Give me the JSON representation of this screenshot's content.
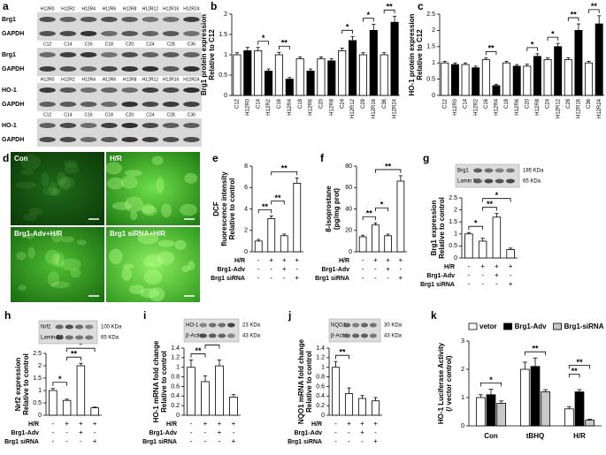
{
  "blots": {
    "panel": "a",
    "strips": [
      {
        "lanes": [
          "H12R0",
          "H12R2",
          "H12R4",
          "H12R6",
          "H12R8",
          "H12R12",
          "H12R16",
          "H12R24"
        ],
        "rows": [
          "Brg1",
          "GAPDH"
        ]
      },
      {
        "lanes": [
          "C12",
          "C14",
          "C16",
          "C18",
          "C20",
          "C24",
          "C28",
          "C36"
        ],
        "rows": [
          "Brg1",
          "GAPDH"
        ]
      },
      {
        "lanes": [
          "H12R0",
          "H12R2",
          "H12R4",
          "H12R6",
          "H12R8",
          "H12R12",
          "H12R16",
          "H12R24"
        ],
        "rows": [
          "HO-1",
          "GAPDH"
        ]
      },
      {
        "lanes": [
          "C12",
          "C14",
          "C16",
          "C18",
          "C20",
          "C24",
          "C28",
          "C36"
        ],
        "rows": [
          "HO-1",
          "GAPDH"
        ]
      }
    ]
  },
  "micrographs": {
    "panel": "d",
    "images": [
      {
        "label": "Con"
      },
      {
        "label": "H/R"
      },
      {
        "label": "Brg1-Adv+H/R"
      },
      {
        "label": "Brg1 siRNA+H/R"
      }
    ]
  },
  "chart_data": [
    {
      "panel": "b",
      "type": "bar",
      "ylabel": [
        "Brg1 protein expression",
        "Relative to C12"
      ],
      "ylim": [
        0,
        2
      ],
      "yticks": [
        0,
        0.5,
        1,
        1.5,
        2
      ],
      "categories": [
        "C12",
        "H12R0",
        "C14",
        "H12R2",
        "C16",
        "H12R4",
        "C18",
        "H12R6",
        "C20",
        "H12R8",
        "C24",
        "H12R12",
        "C28",
        "H12R16",
        "C36",
        "H12R24"
      ],
      "values": [
        1.0,
        1.1,
        1.1,
        0.6,
        1.0,
        0.4,
        0.9,
        0.6,
        0.9,
        0.85,
        1.1,
        1.35,
        1.0,
        1.6,
        1.0,
        1.8
      ],
      "errors": [
        0.05,
        0.08,
        0.08,
        0.05,
        0.06,
        0.04,
        0.05,
        0.05,
        0.05,
        0.05,
        0.06,
        0.1,
        0.05,
        0.15,
        0.05,
        0.15
      ],
      "bar_colors": [
        "#ffffff",
        "#000000"
      ],
      "significance": [
        {
          "between": [
            2,
            3
          ],
          "label": "*"
        },
        {
          "between": [
            4,
            5
          ],
          "label": "**"
        },
        {
          "between": [
            10,
            11
          ],
          "label": "*"
        },
        {
          "between": [
            12,
            13
          ],
          "label": "*"
        },
        {
          "between": [
            14,
            15
          ],
          "label": "**"
        }
      ]
    },
    {
      "panel": "c",
      "type": "bar",
      "ylabel": [
        "HO-1 protein expression",
        "Relative to C12"
      ],
      "ylim": [
        0,
        2.5
      ],
      "yticks": [
        0,
        0.5,
        1,
        1.5,
        2,
        2.5
      ],
      "categories": [
        "C12",
        "H12R0",
        "C14",
        "H12R2",
        "C16",
        "H12R4",
        "C18",
        "H12R6",
        "C20",
        "H12R8",
        "C24",
        "H12R12",
        "C28",
        "H12R16",
        "C36",
        "H12R24"
      ],
      "values": [
        1.0,
        0.95,
        0.95,
        0.85,
        1.1,
        0.3,
        1.0,
        0.9,
        0.9,
        1.2,
        1.1,
        1.5,
        1.1,
        2.0,
        1.0,
        2.2
      ],
      "errors": [
        0.05,
        0.05,
        0.05,
        0.05,
        0.06,
        0.04,
        0.05,
        0.05,
        0.06,
        0.08,
        0.06,
        0.1,
        0.06,
        0.2,
        0.05,
        0.25
      ],
      "bar_colors": [
        "#ffffff",
        "#000000"
      ],
      "significance": [
        {
          "between": [
            4,
            5
          ],
          "label": "**"
        },
        {
          "between": [
            8,
            9
          ],
          "label": "*"
        },
        {
          "between": [
            10,
            11
          ],
          "label": "*"
        },
        {
          "between": [
            12,
            13
          ],
          "label": "**"
        },
        {
          "between": [
            14,
            15
          ],
          "label": "**"
        }
      ]
    },
    {
      "panel": "e",
      "type": "bar",
      "ylabel": [
        "DCF",
        "fluorescence intensity",
        "Relative to control"
      ],
      "ylim": [
        0,
        8
      ],
      "yticks": [
        0,
        2,
        4,
        6,
        8
      ],
      "values": [
        1.0,
        3.1,
        1.5,
        6.4
      ],
      "errors": [
        0.15,
        0.25,
        0.15,
        0.5
      ],
      "color": "#ffffff",
      "significance": [
        {
          "between": [
            0,
            1
          ],
          "label": "**"
        },
        {
          "between": [
            1,
            2
          ],
          "label": "**"
        },
        {
          "between": [
            1,
            3
          ],
          "label": "**"
        }
      ],
      "conditions": [
        {
          "label": "H/R",
          "signs": [
            "-",
            "+",
            "+",
            "+"
          ]
        },
        {
          "label": "Brg1-Adv",
          "signs": [
            "-",
            "-",
            "+",
            "-"
          ]
        },
        {
          "label": "Brg1 siRNA",
          "signs": [
            "-",
            "-",
            "-",
            "+"
          ]
        }
      ]
    },
    {
      "panel": "f",
      "type": "bar",
      "ylabel": [
        "8-isoprostane",
        "(pg/mg prot)"
      ],
      "ylim": [
        0,
        80
      ],
      "yticks": [
        0,
        20,
        40,
        60,
        80
      ],
      "values": [
        14,
        25,
        15,
        66
      ],
      "errors": [
        1.5,
        2,
        1.5,
        5
      ],
      "color": "#ffffff",
      "significance": [
        {
          "between": [
            0,
            1
          ],
          "label": "**"
        },
        {
          "between": [
            1,
            2
          ],
          "label": "*"
        },
        {
          "between": [
            1,
            3
          ],
          "label": "**"
        }
      ],
      "conditions": [
        {
          "label": "H/R",
          "signs": [
            "-",
            "+",
            "+",
            "+"
          ]
        },
        {
          "label": "Brg1-Adv",
          "signs": [
            "-",
            "-",
            "+",
            "-"
          ]
        },
        {
          "label": "Brg1 siRNA",
          "signs": [
            "-",
            "-",
            "-",
            "+"
          ]
        }
      ]
    },
    {
      "panel": "g",
      "type": "bar",
      "ylabel": [
        "Brg1 expression",
        "Relative to control"
      ],
      "ylim": [
        0,
        2.5
      ],
      "yticks": [
        0,
        0.5,
        1,
        1.5,
        2,
        2.5
      ],
      "values": [
        1.0,
        0.7,
        1.7,
        0.35
      ],
      "errors": [
        0.06,
        0.12,
        0.15,
        0.06
      ],
      "color": "#ffffff",
      "blot": [
        {
          "label": "Brg1",
          "size": "185 KDa"
        },
        {
          "label": "Lamin B2",
          "size": "65 KDa"
        }
      ],
      "significance": [
        {
          "between": [
            0,
            1
          ],
          "label": "*"
        },
        {
          "between": [
            1,
            2
          ],
          "label": "**"
        },
        {
          "between": [
            1,
            3
          ],
          "label": "*"
        }
      ],
      "conditions": [
        {
          "label": "H/R",
          "signs": [
            "-",
            "+",
            "+",
            "+"
          ]
        },
        {
          "label": "Brg1-Adv",
          "signs": [
            "-",
            "-",
            "+",
            "-"
          ]
        },
        {
          "label": "Brg1 siRNA",
          "signs": [
            "-",
            "-",
            "-",
            "+"
          ]
        }
      ]
    },
    {
      "panel": "h",
      "type": "bar",
      "ylabel": [
        "Nrf2 expression",
        "Relative to control"
      ],
      "ylim": [
        0,
        2.5
      ],
      "yticks": [
        0,
        0.5,
        1,
        1.5,
        2,
        2.5
      ],
      "values": [
        1.0,
        0.6,
        2.0,
        0.3
      ],
      "errors": [
        0.08,
        0.05,
        0.1,
        0.03
      ],
      "color": "#ffffff",
      "blot": [
        {
          "label": "Nrf2",
          "size": "100 KDa"
        },
        {
          "label": "Lamin B2",
          "size": "65 KDa"
        }
      ],
      "significance": [
        {
          "between": [
            0,
            1
          ],
          "label": "*"
        },
        {
          "between": [
            1,
            2
          ],
          "label": "**"
        },
        {
          "between": [
            1,
            3
          ],
          "label": "*"
        }
      ],
      "conditions": [
        {
          "label": "H/R",
          "signs": [
            "-",
            "+",
            "+",
            "+"
          ]
        },
        {
          "label": "Brg1-Adv",
          "signs": [
            "-",
            "-",
            "+",
            "-"
          ]
        },
        {
          "label": "Brg1 siRNA",
          "signs": [
            "-",
            "-",
            "-",
            "+"
          ]
        }
      ]
    },
    {
      "panel": "i",
      "type": "bar",
      "ylabel": [
        "HO-1 mRNA fold change",
        "Relative to control"
      ],
      "ylim": [
        0,
        1.4
      ],
      "yticks": [
        0,
        0.2,
        0.4,
        0.6,
        0.8,
        1,
        1.2,
        1.4
      ],
      "values": [
        1.0,
        0.7,
        1.03,
        0.38
      ],
      "errors": [
        0.15,
        0.12,
        0.12,
        0.05
      ],
      "color": "#ffffff",
      "blot": [
        {
          "label": "HO-1",
          "size": "23 KDa"
        },
        {
          "label": "β-Actin",
          "size": "43 KDa"
        }
      ],
      "significance": [
        {
          "between": [
            0,
            1
          ],
          "label": "**"
        },
        {
          "between": [
            1,
            2
          ],
          "label": "**"
        },
        {
          "between": [
            1,
            3
          ],
          "label": "**"
        }
      ],
      "conditions": [
        {
          "label": "H/R",
          "signs": [
            "-",
            "+",
            "+",
            "+"
          ]
        },
        {
          "label": "Brg1-Adv",
          "signs": [
            "-",
            "-",
            "+",
            "-"
          ]
        },
        {
          "label": "Brg1 siRNA",
          "signs": [
            "-",
            "-",
            "-",
            "+"
          ]
        }
      ]
    },
    {
      "panel": "j",
      "type": "bar",
      "ylabel": [
        "NQO1 mRNA fold change",
        "Relative to control"
      ],
      "ylim": [
        0,
        1.4
      ],
      "yticks": [
        0,
        0.2,
        0.4,
        0.6,
        0.8,
        1,
        1.2,
        1.4
      ],
      "values": [
        1.0,
        0.45,
        0.35,
        0.3
      ],
      "errors": [
        0.12,
        0.12,
        0.06,
        0.07
      ],
      "color": "#ffffff",
      "blot": [
        {
          "label": "NQO1",
          "size": "30 KDa"
        },
        {
          "label": "β-Actin",
          "size": "43 KDa"
        }
      ],
      "significance": [
        {
          "between": [
            0,
            1
          ],
          "label": "**"
        }
      ],
      "conditions": [
        {
          "label": "H/R",
          "signs": [
            "-",
            "+",
            "+",
            "+"
          ]
        },
        {
          "label": "Brg1-Adv",
          "signs": [
            "-",
            "-",
            "+",
            "-"
          ]
        },
        {
          "label": "Brg1 siRNA",
          "signs": [
            "-",
            "-",
            "-",
            "+"
          ]
        }
      ]
    },
    {
      "panel": "k",
      "type": "bar",
      "ylabel": [
        "HO-1 Luciferase Activity",
        "(/ vector control)"
      ],
      "ylim": [
        0,
        3
      ],
      "yticks": [
        0,
        1,
        2,
        3
      ],
      "categories": [
        "Con",
        "tBHQ",
        "H/R"
      ],
      "legend": "top",
      "series": [
        {
          "name": "vetor",
          "color": "#ffffff",
          "values": [
            1.0,
            2.0,
            0.6
          ],
          "errors": [
            0.1,
            0.25,
            0.08
          ]
        },
        {
          "name": "Brg1-Adv",
          "color": "#000000",
          "values": [
            1.1,
            2.1,
            1.2
          ],
          "errors": [
            0.2,
            0.3,
            0.08
          ]
        },
        {
          "name": "Brg1-siRNA",
          "color": "#c8c8c8",
          "values": [
            0.8,
            1.2,
            0.2
          ],
          "errors": [
            0.08,
            0.08,
            0.03
          ]
        }
      ],
      "significance": [
        {
          "category": 0,
          "between": [
            0,
            2
          ],
          "label": "*"
        },
        {
          "category": 1,
          "between": [
            0,
            2
          ],
          "label": "**"
        },
        {
          "category": 2,
          "between": [
            0,
            1
          ],
          "label": "**"
        },
        {
          "category": 2,
          "between": [
            0,
            2
          ],
          "label": "**"
        }
      ]
    }
  ]
}
